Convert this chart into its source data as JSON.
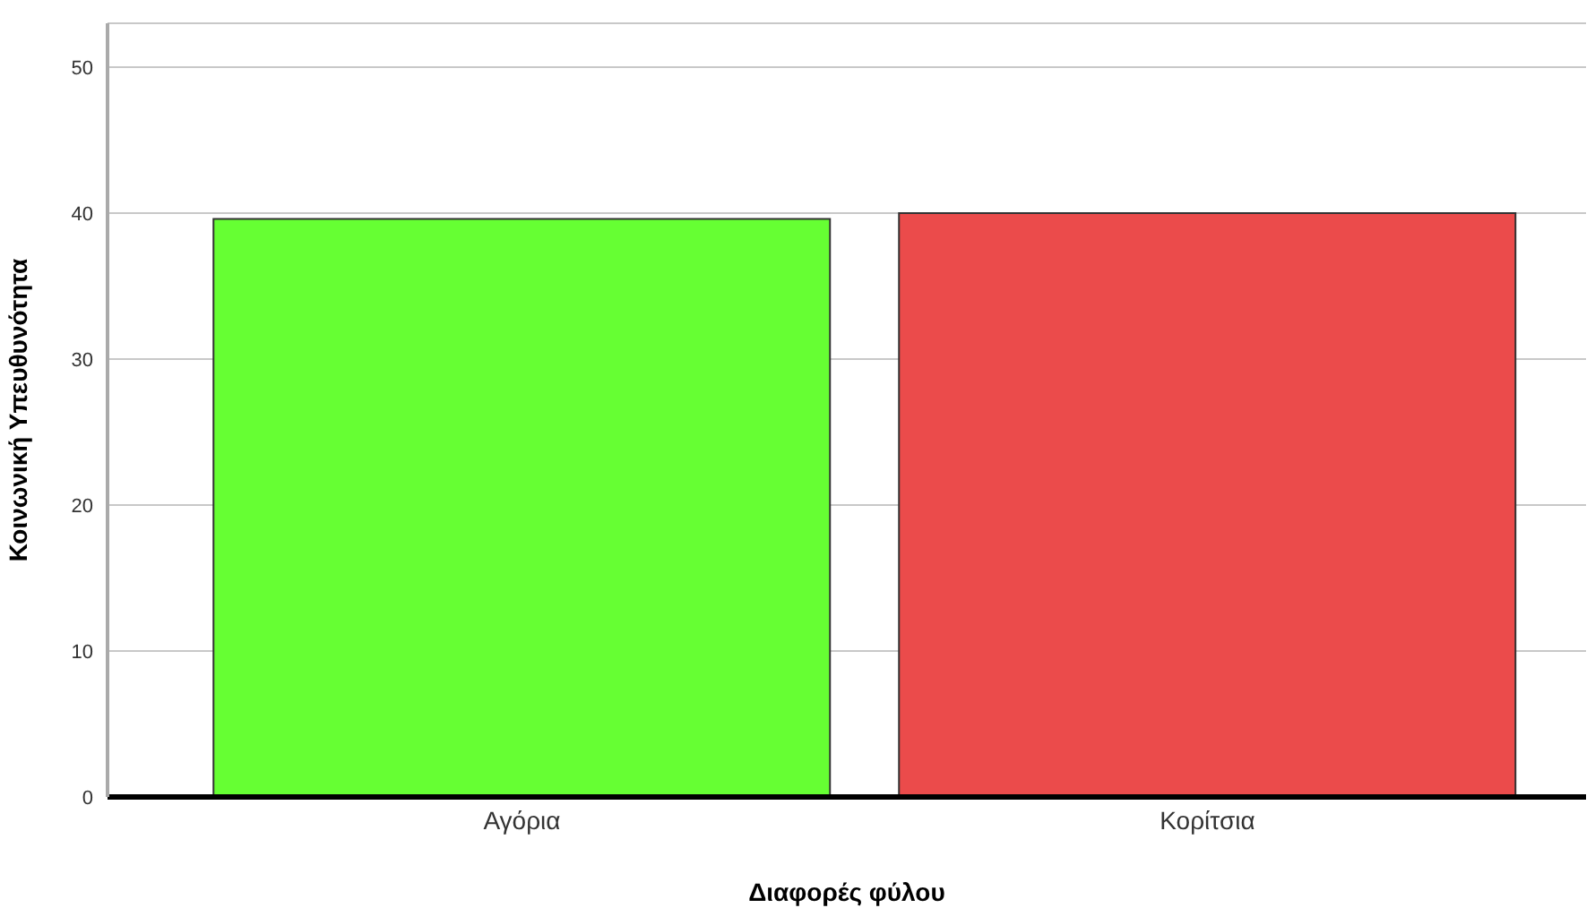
{
  "chart_data": {
    "type": "bar",
    "xlabel": "Διαφορές φύλου",
    "ylabel": "Κοινωνική Υπευθυνότητα",
    "categories": [
      "Αγόρια",
      "Κορίτσια"
    ],
    "values": [
      39.6,
      40.0
    ],
    "colors": [
      "#66ff33",
      "#eb4b4b"
    ],
    "ylim": [
      0,
      53
    ],
    "yticks": [
      0,
      10,
      20,
      30,
      40,
      50
    ],
    "grid": "y"
  }
}
